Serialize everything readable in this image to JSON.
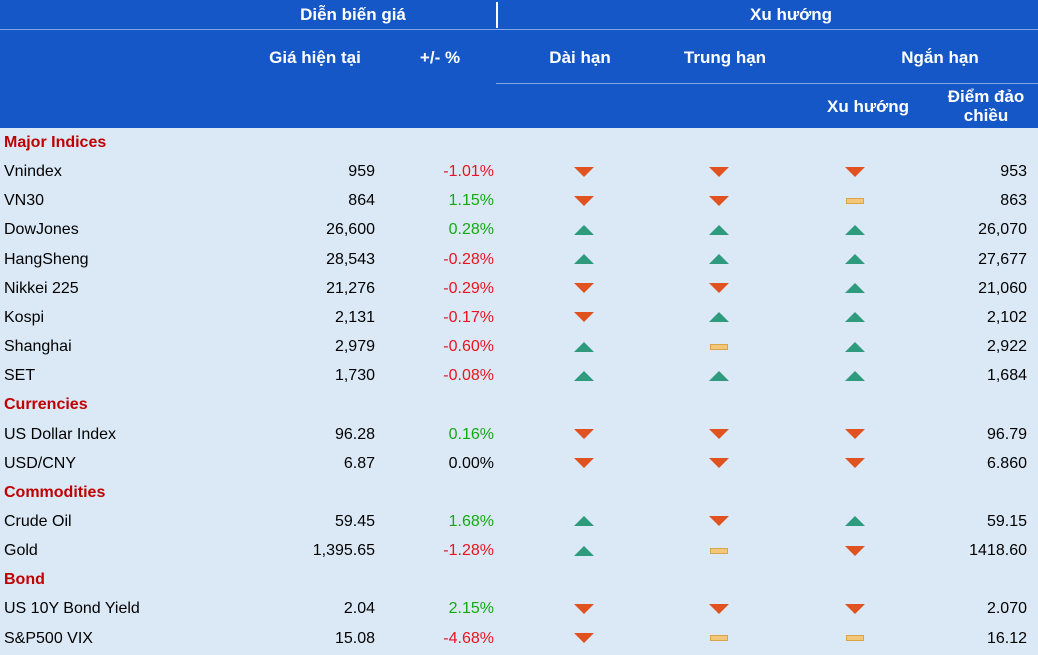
{
  "header": {
    "group_price": "Diễn biến giá",
    "group_trend": "Xu hướng",
    "col_price": "Giá hiện tại",
    "col_change": "+/- %",
    "col_long": "Dài hạn",
    "col_medium": "Trung hạn",
    "col_short": "Ngắn hạn",
    "col_short_trend": "Xu hướng",
    "col_reversal": "Điểm đảo chiều"
  },
  "colors": {
    "header_bg": "#1557c6",
    "body_bg": "#dbe9f6",
    "section_text": "#c00000",
    "negative": "#e8141e",
    "positive": "#14a814",
    "trend_down": "#e0521f",
    "trend_up": "#2e9a7e",
    "trend_flat": "#f2c77a"
  },
  "rows": [
    {
      "type": "section",
      "label": "Major Indices"
    },
    {
      "type": "item",
      "name": "Vnindex",
      "price": "959",
      "change": "-1.01%",
      "sign": "neg",
      "long": "down",
      "medium": "down",
      "short": "down",
      "reversal": "953"
    },
    {
      "type": "item",
      "name": "VN30",
      "price": "864",
      "change": "1.15%",
      "sign": "pos",
      "long": "down",
      "medium": "down",
      "short": "flat",
      "reversal": "863"
    },
    {
      "type": "item",
      "name": "DowJones",
      "price": "26,600",
      "change": "0.28%",
      "sign": "pos",
      "long": "up",
      "medium": "up",
      "short": "up",
      "reversal": "26,070"
    },
    {
      "type": "item",
      "name": "HangSheng",
      "price": "28,543",
      "change": "-0.28%",
      "sign": "neg",
      "long": "up",
      "medium": "up",
      "short": "up",
      "reversal": "27,677"
    },
    {
      "type": "item",
      "name": "Nikkei 225",
      "price": "21,276",
      "change": "-0.29%",
      "sign": "neg",
      "long": "down",
      "medium": "down",
      "short": "up",
      "reversal": "21,060"
    },
    {
      "type": "item",
      "name": "Kospi",
      "price": "2,131",
      "change": "-0.17%",
      "sign": "neg",
      "long": "down",
      "medium": "up",
      "short": "up",
      "reversal": "2,102"
    },
    {
      "type": "item",
      "name": "Shanghai",
      "price": "2,979",
      "change": "-0.60%",
      "sign": "neg",
      "long": "up",
      "medium": "flat",
      "short": "up",
      "reversal": "2,922"
    },
    {
      "type": "item",
      "name": "SET",
      "price": "1,730",
      "change": "-0.08%",
      "sign": "neg",
      "long": "up",
      "medium": "up",
      "short": "up",
      "reversal": "1,684"
    },
    {
      "type": "section",
      "label": "Currencies"
    },
    {
      "type": "item",
      "name": "US Dollar Index",
      "price": "96.28",
      "change": "0.16%",
      "sign": "pos",
      "long": "down",
      "medium": "down",
      "short": "down",
      "reversal": "96.79"
    },
    {
      "type": "item",
      "name": "USD/CNY",
      "price": "6.87",
      "change": "0.00%",
      "sign": "zero",
      "long": "down",
      "medium": "down",
      "short": "down",
      "reversal": "6.860"
    },
    {
      "type": "section",
      "label": "Commodities"
    },
    {
      "type": "item",
      "name": "Crude Oil",
      "price": "59.45",
      "change": "1.68%",
      "sign": "pos",
      "long": "up",
      "medium": "down",
      "short": "up",
      "reversal": "59.15"
    },
    {
      "type": "item",
      "name": "Gold",
      "price": "1,395.65",
      "change": "-1.28%",
      "sign": "neg",
      "long": "up",
      "medium": "flat",
      "short": "down",
      "reversal": "1418.60"
    },
    {
      "type": "section",
      "label": "Bond"
    },
    {
      "type": "item",
      "name": "US 10Y Bond Yield",
      "price": "2.04",
      "change": "2.15%",
      "sign": "pos",
      "long": "down",
      "medium": "down",
      "short": "down",
      "reversal": "2.070"
    },
    {
      "type": "item",
      "name": "S&P500 VIX",
      "price": "15.08",
      "change": "-4.68%",
      "sign": "neg",
      "long": "down",
      "medium": "flat",
      "short": "flat",
      "reversal": "16.12"
    }
  ]
}
